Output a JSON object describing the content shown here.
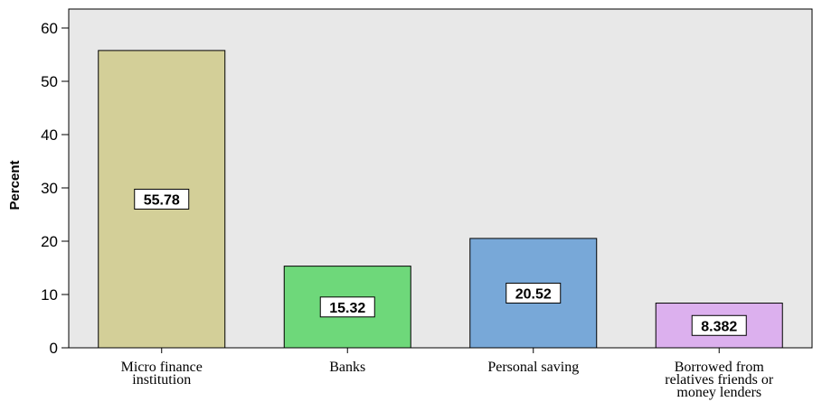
{
  "chart_data": {
    "type": "bar",
    "ylabel": "Percent",
    "xlabel": "",
    "ylim": [
      0,
      60
    ],
    "yticks": [
      0,
      10,
      20,
      30,
      40,
      50,
      60
    ],
    "categories": [
      [
        "Micro finance",
        "institution"
      ],
      [
        "Banks"
      ],
      [
        "Personal saving"
      ],
      [
        "Borrowed from",
        "relatives friends or",
        "money lenders"
      ]
    ],
    "values": [
      55.78,
      15.32,
      20.52,
      8.382
    ],
    "data_labels": [
      "55.78",
      "15.32",
      "20.52",
      "8.382"
    ],
    "colors": [
      "#d3cf98",
      "#6ed87a",
      "#78a8d8",
      "#dcb0ee"
    ],
    "plot_background": "#e8e8e8",
    "grid": false
  }
}
